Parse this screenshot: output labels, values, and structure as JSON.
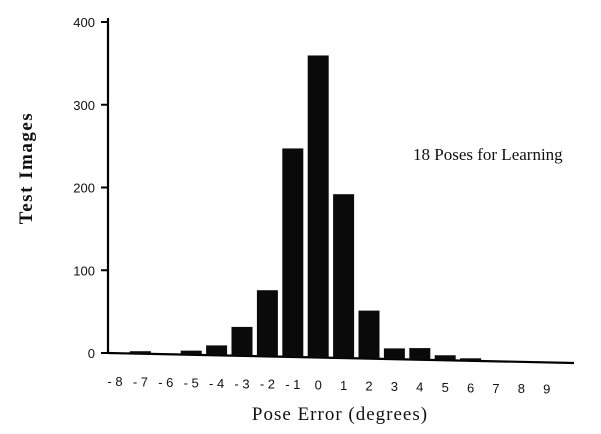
{
  "chart_data": {
    "type": "bar",
    "title": "",
    "annotation": "18 Poses for Learning",
    "xlabel": "Pose Error (degrees)",
    "ylabel": "Test Images",
    "categories": [
      "-8",
      "-7",
      "-6",
      "-5",
      "-4",
      "-3",
      "-2",
      "-1",
      "0",
      "1",
      "2",
      "3",
      "4",
      "5",
      "6",
      "7",
      "8",
      "9"
    ],
    "values": [
      0,
      3,
      1,
      5,
      12,
      35,
      80,
      252,
      365,
      198,
      58,
      13,
      14,
      6,
      3,
      1,
      0,
      0
    ],
    "ylim": [
      0,
      400
    ],
    "yticks": [
      0,
      100,
      200,
      300,
      400
    ],
    "grid": false
  },
  "colors": {
    "bar": "#0a0a0a",
    "axis": "#000000"
  }
}
